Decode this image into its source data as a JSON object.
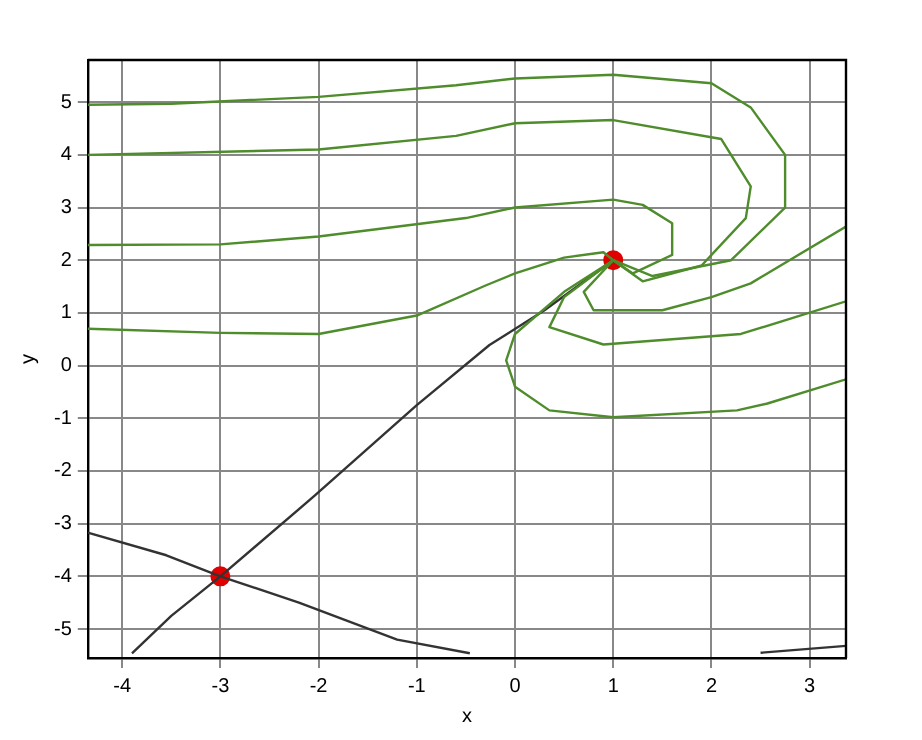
{
  "chart_data": {
    "type": "line",
    "xlabel": "x",
    "ylabel": "y",
    "xlim": [
      -4.35,
      3.37
    ],
    "ylim": [
      -5.55,
      5.8
    ],
    "xticks": [
      -4,
      -3,
      -2,
      -1,
      0,
      1,
      2,
      3
    ],
    "yticks": [
      -5,
      -4,
      -3,
      -2,
      -1,
      0,
      1,
      2,
      3,
      4,
      5
    ],
    "grid": true,
    "legend": false,
    "marker": "none",
    "line_style": "solid",
    "series": [
      {
        "color": "#4e8c2c",
        "x": [
          1,
          1.4,
          2.2,
          2.75,
          2.75,
          2.4,
          2,
          1,
          0,
          -0.6,
          -2,
          -3.5,
          -4.35
        ],
        "values": [
          2,
          1.7,
          2.0,
          3.0,
          4.0,
          4.9,
          5.36,
          5.52,
          5.45,
          5.32,
          5.1,
          4.97,
          4.95
        ]
      },
      {
        "color": "#4e8c2c",
        "x": [
          1,
          1.3,
          1.9,
          2.35,
          2.4,
          2.1,
          1,
          0,
          -0.6,
          -2,
          -4.35
        ],
        "values": [
          2,
          1.6,
          1.9,
          2.8,
          3.4,
          4.3,
          4.66,
          4.6,
          4.36,
          4.1,
          4.0
        ]
      },
      {
        "color": "#4e8c2c",
        "x": [
          1,
          1.2,
          1.6,
          1.6,
          1.3,
          1,
          0,
          -0.5,
          -2,
          -3,
          -4.35
        ],
        "values": [
          2,
          1.75,
          2.1,
          2.7,
          3.05,
          3.15,
          3.0,
          2.8,
          2.45,
          2.3,
          2.29
        ]
      },
      {
        "color": "#4e8c2c",
        "x": [
          1,
          0.9,
          0.5,
          0,
          -0.3,
          -1,
          -2,
          -3,
          -4.35
        ],
        "values": [
          2,
          2.15,
          2.05,
          1.75,
          1.52,
          0.95,
          0.6,
          0.62,
          0.7
        ]
      },
      {
        "color": "#4e8c2c",
        "x": [
          1,
          0.7,
          0.8,
          1.5,
          2.0,
          2.4,
          3.37
        ],
        "values": [
          2,
          1.4,
          1.05,
          1.05,
          1.3,
          1.56,
          2.64
        ]
      },
      {
        "color": "#4e8c2c",
        "x": [
          1,
          0.5,
          0.35,
          0.9,
          2.3,
          3.37
        ],
        "values": [
          2,
          1.3,
          0.73,
          0.4,
          0.6,
          1.22
        ]
      },
      {
        "color": "#4e8c2c",
        "x": [
          1,
          0.5,
          0,
          -0.09,
          0,
          0.35,
          1,
          2.26,
          2.57,
          3.37
        ],
        "values": [
          2,
          1.4,
          0.6,
          0.1,
          -0.4,
          -0.85,
          -0.98,
          -0.85,
          -0.72,
          -0.26
        ]
      },
      {
        "color": "#333333",
        "x": [
          1,
          0.3,
          -0.26,
          -1,
          -2.04,
          -3,
          -3.5,
          -3.9
        ],
        "values": [
          2,
          1.05,
          0.39,
          -0.75,
          -2.47,
          -4,
          -4.75,
          -5.46
        ]
      },
      {
        "color": "#333333",
        "x": [
          -4.35,
          -3.55,
          -3,
          -2.2,
          -1.2,
          -0.46,
          0,
          2.5,
          3.37
        ],
        "values": [
          -3.17,
          -3.6,
          -4,
          -4.5,
          -5.2,
          -5.46,
          null,
          -5.45,
          -5.32
        ]
      },
      {
        "type": "scatter",
        "marker": "circle",
        "color": "#e00000",
        "x": [
          1,
          -3
        ],
        "values": [
          2,
          -4
        ]
      }
    ]
  }
}
